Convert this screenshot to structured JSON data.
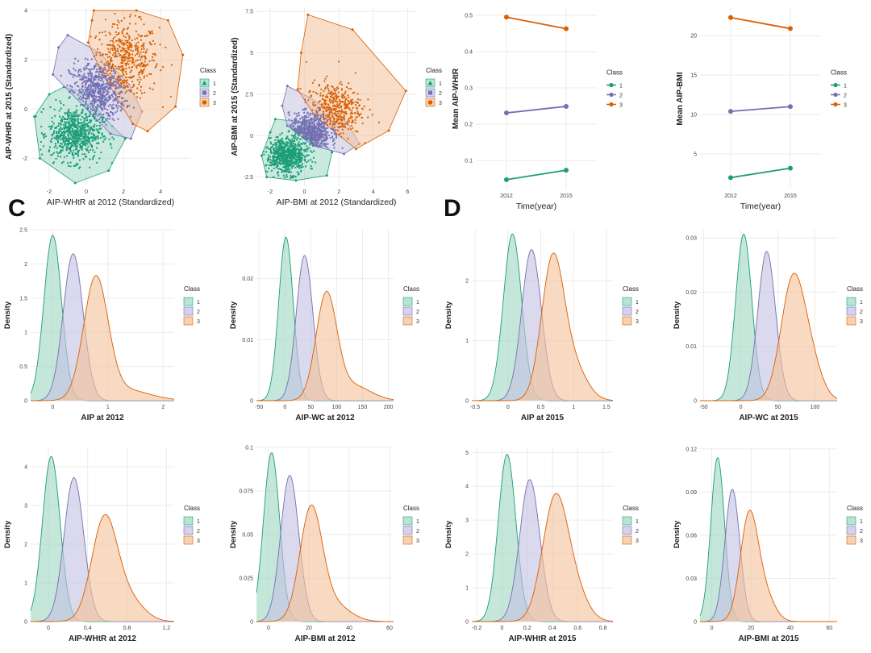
{
  "figure": {
    "panel_labels": [
      "C",
      "D"
    ],
    "legend_title": "Class",
    "colors": {
      "1": "#1b9e77",
      "2": "#7570b3",
      "3": "#d95f02"
    }
  },
  "chart_data": [
    {
      "id": "scatter_whtr",
      "type": "scatter",
      "xlabel": "AIP-WHtR at 2012 (Standardized)",
      "ylabel": "AIP-WHtR at 2015 (Standardized)",
      "xlim": [
        -3,
        5.6
      ],
      "ylim": [
        -3.1,
        4.1
      ],
      "xticks": [
        -2,
        0,
        2,
        4
      ],
      "yticks": [
        -2,
        0,
        2,
        4
      ],
      "legend": {
        "title": "Class",
        "entries": [
          "1",
          "2",
          "3"
        ]
      },
      "hulls": {
        "1": [
          [
            -1.2,
            0.9
          ],
          [
            -0.2,
            0.7
          ],
          [
            1.4,
            -0.7
          ],
          [
            2.1,
            -1.2
          ],
          [
            1.2,
            -2.5
          ],
          [
            -0.6,
            -3.0
          ],
          [
            -2.5,
            -2.0
          ],
          [
            -2.8,
            -0.3
          ],
          [
            -2.0,
            0.6
          ]
        ],
        "2": [
          [
            -1.0,
            3.0
          ],
          [
            0.7,
            2.3
          ],
          [
            2.3,
            1.0
          ],
          [
            3.0,
            -0.1
          ],
          [
            2.4,
            -1.2
          ],
          [
            1.3,
            -1.0
          ],
          [
            -0.9,
            0.7
          ],
          [
            -1.8,
            1.4
          ],
          [
            -1.5,
            2.5
          ]
        ],
        "3": [
          [
            0.4,
            4.0
          ],
          [
            2.7,
            4.0
          ],
          [
            4.4,
            3.6
          ],
          [
            5.2,
            2.2
          ],
          [
            4.8,
            0.1
          ],
          [
            3.3,
            -0.9
          ],
          [
            2.5,
            -0.6
          ],
          [
            0.8,
            1.5
          ],
          [
            0.1,
            2.7
          ],
          [
            0.3,
            3.6
          ]
        ]
      },
      "clusters": [
        {
          "class": "1",
          "cx": -0.6,
          "cy": -1.0,
          "sx": 0.7,
          "sy": 0.55,
          "n": 700
        },
        {
          "class": "2",
          "cx": 0.6,
          "cy": 0.7,
          "sx": 0.75,
          "sy": 0.6,
          "n": 600
        },
        {
          "class": "3",
          "cx": 2.1,
          "cy": 2.0,
          "sx": 0.9,
          "sy": 0.75,
          "n": 450
        }
      ]
    },
    {
      "id": "scatter_bmi",
      "type": "scatter",
      "xlabel": "AIP-BMI at 2012 (Standardized)",
      "ylabel": "AIP-BMI at 2015 (Standardized)",
      "xlim": [
        -2.8,
        6.5
      ],
      "ylim": [
        -3.0,
        7.7
      ],
      "xticks": [
        -2,
        0,
        2,
        4,
        6
      ],
      "yticks": [
        -2.5,
        0,
        2.5,
        5,
        7.5
      ],
      "legend": {
        "title": "Class",
        "entries": [
          "1",
          "2",
          "3"
        ]
      },
      "hulls": {
        "1": [
          [
            -1.7,
            1.0
          ],
          [
            0.1,
            0.8
          ],
          [
            1.0,
            -0.3
          ],
          [
            1.6,
            -1.0
          ],
          [
            1.3,
            -2.4
          ],
          [
            -0.5,
            -2.7
          ],
          [
            -2.2,
            -2.5
          ],
          [
            -2.5,
            -1.2
          ],
          [
            -2.0,
            0.2
          ]
        ],
        "2": [
          [
            -1.0,
            3.0
          ],
          [
            0.3,
            2.3
          ],
          [
            2.5,
            0.8
          ],
          [
            3.2,
            -0.5
          ],
          [
            2.3,
            -1.1
          ],
          [
            0.5,
            -0.6
          ],
          [
            -1.0,
            0.6
          ],
          [
            -1.3,
            1.8
          ]
        ],
        "3": [
          [
            0.2,
            7.3
          ],
          [
            2.8,
            6.4
          ],
          [
            5.9,
            2.7
          ],
          [
            4.9,
            0.3
          ],
          [
            3.0,
            -0.8
          ],
          [
            0.6,
            1.2
          ],
          [
            -0.4,
            2.8
          ],
          [
            -0.2,
            5.0
          ]
        ]
      },
      "clusters": [
        {
          "class": "1",
          "cx": -1.0,
          "cy": -1.2,
          "sx": 0.6,
          "sy": 0.55,
          "n": 700
        },
        {
          "class": "2",
          "cx": 0.3,
          "cy": 0.2,
          "sx": 0.6,
          "sy": 0.55,
          "n": 600
        },
        {
          "class": "3",
          "cx": 1.7,
          "cy": 1.6,
          "sx": 0.8,
          "sy": 0.8,
          "n": 400
        }
      ]
    },
    {
      "id": "line_whtr",
      "type": "line",
      "xlabel": "Time(year)",
      "ylabel": "Mean AIP-WHtR",
      "categories": [
        "2012",
        "2015"
      ],
      "ylim": [
        0.02,
        0.52
      ],
      "yticks": [
        0.1,
        0.2,
        0.3,
        0.4,
        0.5
      ],
      "legend": {
        "title": "Class",
        "entries": [
          "1",
          "2",
          "3"
        ]
      },
      "series": [
        {
          "name": "1",
          "values": [
            0.047,
            0.073
          ]
        },
        {
          "name": "2",
          "values": [
            0.231,
            0.249
          ]
        },
        {
          "name": "3",
          "values": [
            0.495,
            0.463
          ]
        }
      ]
    },
    {
      "id": "line_bmi",
      "type": "line",
      "xlabel": "Time(year)",
      "ylabel": "Mean AIP-BMI",
      "categories": [
        "2012",
        "2015"
      ],
      "ylim": [
        0.5,
        23.5
      ],
      "yticks": [
        5,
        10,
        15,
        20
      ],
      "legend": {
        "title": "Class",
        "entries": [
          "1",
          "2",
          "3"
        ]
      },
      "series": [
        {
          "name": "1",
          "values": [
            2.0,
            3.2
          ]
        },
        {
          "name": "2",
          "values": [
            10.4,
            11.0
          ]
        },
        {
          "name": "3",
          "values": [
            22.3,
            20.9
          ]
        }
      ]
    },
    {
      "id": "dens_aip_2012",
      "type": "area",
      "xlabel": "AIP at 2012",
      "ylabel": "Density",
      "xlim": [
        -0.4,
        2.2
      ],
      "ylim": [
        0,
        2.5
      ],
      "xticks": [
        0,
        1,
        2
      ],
      "yticks": [
        0.0,
        0.5,
        1.0,
        1.5,
        2.0,
        2.5
      ],
      "legend": {
        "title": "Class",
        "entries": [
          "1",
          "2",
          "3"
        ]
      },
      "series": [
        {
          "name": "1",
          "mean": 0.0,
          "sd": 0.16,
          "peak": 2.42
        },
        {
          "name": "2",
          "mean": 0.37,
          "sd": 0.18,
          "peak": 2.15
        },
        {
          "name": "3",
          "mean": 0.78,
          "sd": 0.22,
          "peak": 1.75,
          "tail": 0.75,
          "tail_mean": 1.3,
          "tail_sd": 0.45,
          "tail_peak": 0.16
        }
      ]
    },
    {
      "id": "dens_aipwc_2012",
      "type": "area",
      "xlabel": "AIP-WC at 2012",
      "ylabel": "Density",
      "xlim": [
        -55,
        210
      ],
      "ylim": [
        0,
        0.028
      ],
      "xticks": [
        -50,
        0,
        50,
        100,
        150,
        200
      ],
      "yticks": [
        0.0,
        0.01,
        0.02
      ],
      "legend": {
        "title": "Class",
        "entries": [
          "1",
          "2",
          "3"
        ]
      },
      "series": [
        {
          "name": "1",
          "mean": 2,
          "sd": 14,
          "peak": 0.0268
        },
        {
          "name": "2",
          "mean": 38,
          "sd": 16,
          "peak": 0.0238
        },
        {
          "name": "3",
          "mean": 80,
          "sd": 20,
          "peak": 0.017,
          "tail": 0.7,
          "tail_mean": 130,
          "tail_sd": 35,
          "tail_peak": 0.0025
        }
      ]
    },
    {
      "id": "dens_aip_2015",
      "type": "area",
      "xlabel": "AIP at 2015",
      "ylabel": "Density",
      "xlim": [
        -0.55,
        1.6
      ],
      "ylim": [
        0,
        2.85
      ],
      "xticks": [
        -0.5,
        0.0,
        0.5,
        1.0,
        1.5
      ],
      "yticks": [
        0,
        1,
        2
      ],
      "legend": {
        "title": "Class",
        "entries": [
          "1",
          "2",
          "3"
        ]
      },
      "series": [
        {
          "name": "1",
          "mean": 0.07,
          "sd": 0.14,
          "peak": 2.78
        },
        {
          "name": "2",
          "mean": 0.36,
          "sd": 0.15,
          "peak": 2.52
        },
        {
          "name": "3",
          "mean": 0.68,
          "sd": 0.17,
          "peak": 2.3,
          "tail": 0.7,
          "tail_mean": 1.0,
          "tail_sd": 0.2,
          "tail_peak": 0.55
        }
      ]
    },
    {
      "id": "dens_aipwc_2015",
      "type": "area",
      "xlabel": "AIP-WC at 2015",
      "ylabel": "Density",
      "xlim": [
        -55,
        130
      ],
      "ylim": [
        0,
        0.0315
      ],
      "xticks": [
        -50,
        0,
        50,
        100
      ],
      "yticks": [
        0.0,
        0.01,
        0.02,
        0.03
      ],
      "legend": {
        "title": "Class",
        "entries": [
          "1",
          "2",
          "3"
        ]
      },
      "series": [
        {
          "name": "1",
          "mean": 4,
          "sd": 11,
          "peak": 0.0307
        },
        {
          "name": "2",
          "mean": 35,
          "sd": 12,
          "peak": 0.0275
        },
        {
          "name": "3",
          "mean": 70,
          "sd": 16,
          "peak": 0.0218,
          "tail": 0.7,
          "tail_mean": 95,
          "tail_sd": 15,
          "tail_peak": 0.006
        }
      ]
    },
    {
      "id": "dens_whtr_2012",
      "type": "area",
      "xlabel": "AIP-WHtR at 2012",
      "ylabel": "Density",
      "xlim": [
        -0.18,
        1.28
      ],
      "ylim": [
        0,
        4.5
      ],
      "xticks": [
        0.0,
        0.4,
        0.8,
        1.2
      ],
      "yticks": [
        0,
        1,
        2,
        3,
        4
      ],
      "legend": {
        "title": "Class",
        "entries": [
          "1",
          "2",
          "3"
        ]
      },
      "series": [
        {
          "name": "1",
          "mean": 0.03,
          "sd": 0.09,
          "peak": 4.27
        },
        {
          "name": "2",
          "mean": 0.26,
          "sd": 0.1,
          "peak": 3.72
        },
        {
          "name": "3",
          "mean": 0.57,
          "sd": 0.13,
          "peak": 2.62,
          "tail": 0.7,
          "tail_mean": 0.82,
          "tail_sd": 0.15,
          "tail_peak": 0.55
        }
      ]
    },
    {
      "id": "dens_bmi_2012",
      "type": "area",
      "xlabel": "AIP-BMI at 2012",
      "ylabel": "Density",
      "xlim": [
        -6,
        62
      ],
      "ylim": [
        0,
        0.1
      ],
      "xticks": [
        0,
        20,
        40,
        60
      ],
      "yticks": [
        0.0,
        0.025,
        0.05,
        0.075,
        0.1
      ],
      "legend": {
        "title": "Class",
        "entries": [
          "1",
          "2",
          "3"
        ]
      },
      "series": [
        {
          "name": "1",
          "mean": 1.5,
          "sd": 4,
          "peak": 0.097
        },
        {
          "name": "2",
          "mean": 10.5,
          "sd": 4.5,
          "peak": 0.084
        },
        {
          "name": "3",
          "mean": 21,
          "sd": 5.5,
          "peak": 0.063,
          "tail": 0.7,
          "tail_mean": 32,
          "tail_sd": 8,
          "tail_peak": 0.01
        }
      ]
    },
    {
      "id": "dens_whtr_2015",
      "type": "area",
      "xlabel": "AIP-WHtR at 2015",
      "ylabel": "Density",
      "xlim": [
        -0.24,
        0.88
      ],
      "ylim": [
        0,
        5.15
      ],
      "xticks": [
        -0.2,
        0.0,
        0.2,
        0.4,
        0.6,
        0.8
      ],
      "yticks": [
        0,
        1,
        2,
        3,
        4,
        5
      ],
      "legend": {
        "title": "Class",
        "entries": [
          "1",
          "2",
          "3"
        ]
      },
      "series": [
        {
          "name": "1",
          "mean": 0.04,
          "sd": 0.07,
          "peak": 4.95
        },
        {
          "name": "2",
          "mean": 0.22,
          "sd": 0.08,
          "peak": 4.2
        },
        {
          "name": "3",
          "mean": 0.42,
          "sd": 0.1,
          "peak": 3.55,
          "tail": 0.7,
          "tail_mean": 0.58,
          "tail_sd": 0.1,
          "tail_peak": 0.8
        }
      ]
    },
    {
      "id": "dens_bmi_2015",
      "type": "area",
      "xlabel": "AIP-BMI at 2015",
      "ylabel": "Density",
      "xlim": [
        -6,
        64
      ],
      "ylim": [
        0,
        0.121
      ],
      "xticks": [
        0,
        20,
        40,
        60
      ],
      "yticks": [
        0.0,
        0.03,
        0.06,
        0.09,
        0.12
      ],
      "legend": {
        "title": "Class",
        "entries": [
          "1",
          "2",
          "3"
        ]
      },
      "series": [
        {
          "name": "1",
          "mean": 3,
          "sd": 3.5,
          "peak": 0.114
        },
        {
          "name": "2",
          "mean": 10.5,
          "sd": 3.8,
          "peak": 0.092
        },
        {
          "name": "3",
          "mean": 19,
          "sd": 4.5,
          "peak": 0.072,
          "tail": 0.7,
          "tail_mean": 27,
          "tail_sd": 5,
          "tail_peak": 0.018
        }
      ]
    }
  ]
}
